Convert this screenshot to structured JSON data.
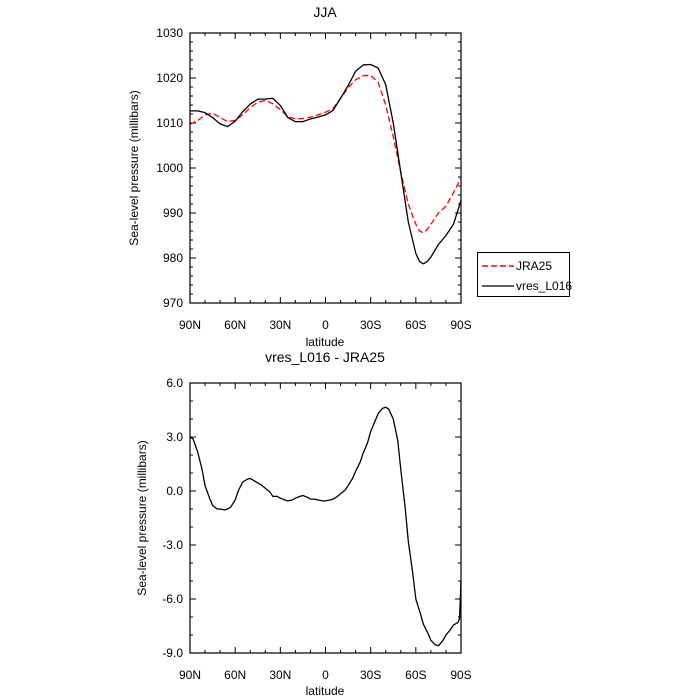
{
  "chart_data": [
    {
      "type": "line",
      "title": "JJA",
      "xlabel": "latitude",
      "ylabel": "Sea-level pressure (millibars)",
      "x_tick_labels": [
        "90N",
        "60N",
        "30N",
        "0",
        "30S",
        "60S",
        "90S"
      ],
      "x_ticks": [
        90,
        60,
        30,
        0,
        -30,
        -60,
        -90
      ],
      "xlim": [
        90,
        -90
      ],
      "ylim": [
        970,
        1030
      ],
      "y_ticks": [
        970,
        980,
        990,
        1000,
        1010,
        1020,
        1030
      ],
      "y_tick_labels": [
        "970",
        "980",
        "990",
        "1000",
        "1010",
        "1020",
        "1030"
      ],
      "legend": {
        "placement": "right"
      },
      "series": [
        {
          "name": "JRA25",
          "color": "#ff0000",
          "dash": "dashed",
          "x": [
            90,
            85,
            80,
            75,
            70,
            65,
            60,
            55,
            50,
            45,
            40,
            35,
            30,
            25,
            20,
            15,
            10,
            5,
            0,
            -5,
            -10,
            -15,
            -20,
            -25,
            -30,
            -35,
            -40,
            -45,
            -50,
            -55,
            -60,
            -62.5,
            -65,
            -67.5,
            -70,
            -75,
            -80,
            -85,
            -90
          ],
          "y": [
            1009.7,
            1010.5,
            1011.8,
            1012.2,
            1011.2,
            1010.3,
            1010.6,
            1011.8,
            1013.4,
            1014.6,
            1015.0,
            1014.3,
            1013.0,
            1011.4,
            1010.9,
            1011.0,
            1011.3,
            1011.8,
            1012.4,
            1013.2,
            1015.5,
            1017.8,
            1019.6,
            1020.5,
            1020.6,
            1019.0,
            1014.0,
            1007.0,
            999.0,
            992.0,
            987.5,
            986.0,
            985.6,
            986.3,
            987.5,
            990.0,
            991.5,
            994.5,
            997.8
          ]
        },
        {
          "name": "vres_L016",
          "color": "#000000",
          "dash": "solid",
          "x": [
            90,
            85,
            80,
            75,
            70,
            65,
            60,
            55,
            50,
            45,
            40,
            35,
            30,
            25,
            20,
            15,
            10,
            5,
            0,
            -5,
            -10,
            -15,
            -20,
            -25,
            -30,
            -35,
            -40,
            -45,
            -50,
            -55,
            -60,
            -62.5,
            -65,
            -67.5,
            -70,
            -75,
            -80,
            -85,
            -90
          ],
          "y": [
            1012.7,
            1012.7,
            1012.3,
            1011.2,
            1009.8,
            1009.2,
            1010.4,
            1012.5,
            1014.2,
            1015.3,
            1015.3,
            1015.5,
            1013.9,
            1011.2,
            1010.3,
            1010.3,
            1010.9,
            1011.3,
            1011.8,
            1012.8,
            1015.5,
            1018.3,
            1021.5,
            1022.9,
            1023.0,
            1022.2,
            1018.5,
            1010.0,
            999.0,
            988.0,
            981.0,
            979.2,
            978.7,
            979.2,
            980.2,
            983.0,
            985.0,
            987.5,
            992.8
          ]
        }
      ]
    },
    {
      "type": "line",
      "title": "vres_L016 - JRA25",
      "xlabel": "latitude",
      "ylabel": "Sea-level pressure (millibars)",
      "x_tick_labels": [
        "90N",
        "60N",
        "30N",
        "0",
        "30S",
        "60S",
        "90S"
      ],
      "x_ticks": [
        90,
        60,
        30,
        0,
        -30,
        -60,
        -90
      ],
      "xlim": [
        90,
        -90
      ],
      "ylim": [
        -9,
        6
      ],
      "y_ticks": [
        -9,
        -6,
        -3,
        0,
        3,
        6
      ],
      "y_tick_labels": [
        "-9.0",
        "-6.0",
        "-3.0",
        "0.0",
        "3.0",
        "6.0"
      ],
      "series": [
        {
          "name": "vres_L016 - JRA25",
          "color": "#000000",
          "dash": "solid",
          "x": [
            90,
            88,
            85,
            82,
            80,
            77,
            75,
            72,
            70,
            67,
            65,
            63,
            60,
            58,
            55,
            52,
            50,
            48,
            45,
            42,
            40,
            37,
            35,
            32,
            30,
            27,
            25,
            22,
            20,
            17,
            15,
            12,
            10,
            7,
            5,
            2,
            0,
            -3,
            -5,
            -8,
            -10,
            -13,
            -15,
            -18,
            -20,
            -23,
            -25,
            -28,
            -30,
            -33,
            -35,
            -38,
            -40,
            -42,
            -45,
            -48,
            -50,
            -53,
            -55,
            -58,
            -60,
            -63,
            -65,
            -68,
            -70,
            -73,
            -75,
            -78,
            -80,
            -83,
            -85,
            -87,
            -88,
            -89,
            -90
          ],
          "y": [
            3.0,
            2.9,
            2.2,
            1.2,
            0.3,
            -0.4,
            -0.8,
            -1.0,
            -1.0,
            -1.05,
            -1.0,
            -0.9,
            -0.5,
            0.0,
            0.5,
            0.65,
            0.7,
            0.6,
            0.45,
            0.3,
            0.15,
            -0.05,
            -0.3,
            -0.3,
            -0.4,
            -0.5,
            -0.55,
            -0.5,
            -0.4,
            -0.3,
            -0.25,
            -0.35,
            -0.45,
            -0.45,
            -0.5,
            -0.55,
            -0.55,
            -0.5,
            -0.45,
            -0.3,
            -0.15,
            0.05,
            0.3,
            0.7,
            1.1,
            1.6,
            2.1,
            2.7,
            3.3,
            3.9,
            4.3,
            4.6,
            4.65,
            4.55,
            4.0,
            2.8,
            1.2,
            -1.0,
            -2.8,
            -4.6,
            -6.0,
            -6.8,
            -7.4,
            -7.9,
            -8.3,
            -8.55,
            -8.6,
            -8.3,
            -8.0,
            -7.7,
            -7.45,
            -7.35,
            -7.3,
            -7.1,
            -5.0
          ]
        }
      ]
    }
  ]
}
